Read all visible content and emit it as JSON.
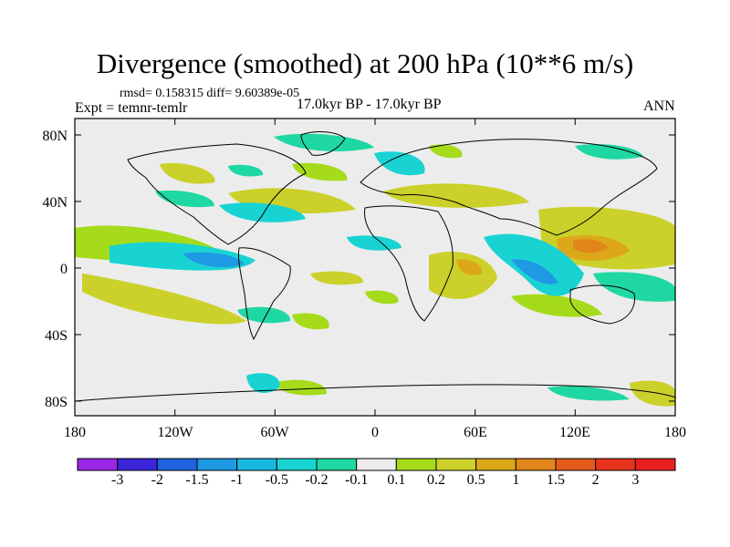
{
  "title": "Divergence (smoothed) at 200 hPa (10**6 m/s)",
  "stats_text": "rmsd= 0.158315 diff= 9.60389e-05",
  "experiment_text": "Expt = temnr-temlr",
  "period_text": "17.0kyr BP - 17.0kyr BP",
  "season_text": "ANN",
  "lat_labels": [
    "80N",
    "40N",
    "0",
    "40S",
    "80S"
  ],
  "lon_labels": [
    "180",
    "120W",
    "60W",
    "0",
    "60E",
    "120E",
    "180"
  ],
  "colorbar": {
    "labels": [
      "-3",
      "-2",
      "-1.5",
      "-1",
      "-0.5",
      "-0.2",
      "-0.1",
      "0.1",
      "0.2",
      "0.5",
      "1",
      "1.5",
      "2",
      "3"
    ],
    "colors": [
      "#9a27e6",
      "#3b25d9",
      "#1f63e0",
      "#1e99e3",
      "#18b8e0",
      "#19d3d3",
      "#1fd7a2",
      "#ececec",
      "#a5db1a",
      "#cbd12a",
      "#dca819",
      "#e0861a",
      "#e35a1a",
      "#e8331c",
      "#ea1e1e"
    ]
  },
  "map_colors": {
    "background": "#ececec",
    "neg_light": "#1fd7a2",
    "neg_mid": "#19d3d3",
    "neg_strong": "#1e99e3",
    "pos_light": "#a5db1a",
    "pos_mid": "#cbd12a",
    "pos_strong": "#dca819",
    "pos_max": "#e0861a"
  }
}
